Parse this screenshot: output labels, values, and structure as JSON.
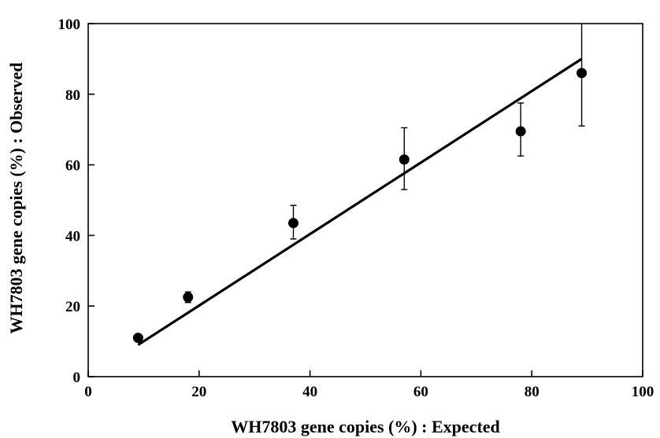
{
  "chart_data": {
    "type": "scatter",
    "title": "",
    "xlabel": "WH7803 gene copies (%) : Expected",
    "ylabel": "WH7803 gene copies (%) : Observed",
    "xlim": [
      0,
      100
    ],
    "ylim": [
      0,
      100
    ],
    "xticks": [
      0,
      20,
      40,
      60,
      80,
      100
    ],
    "yticks": [
      0,
      20,
      40,
      60,
      80,
      100
    ],
    "grid": false,
    "points": [
      {
        "x": 9,
        "y": 11,
        "err_lo": 10.5,
        "err_hi": 11.5
      },
      {
        "x": 18,
        "y": 22.5,
        "err_lo": 21,
        "err_hi": 24
      },
      {
        "x": 37,
        "y": 43.5,
        "err_lo": 39,
        "err_hi": 48.5
      },
      {
        "x": 57,
        "y": 61.5,
        "err_lo": 53,
        "err_hi": 70.5
      },
      {
        "x": 78,
        "y": 69.5,
        "err_lo": 62.5,
        "err_hi": 77.5
      },
      {
        "x": 89,
        "y": 86,
        "err_lo": 71,
        "err_hi": 101
      }
    ],
    "fit_line": {
      "x": [
        9,
        89
      ],
      "y": [
        9,
        90
      ]
    },
    "colors": {
      "marker": "#000000",
      "line": "#000000",
      "axes": "#000000"
    }
  }
}
